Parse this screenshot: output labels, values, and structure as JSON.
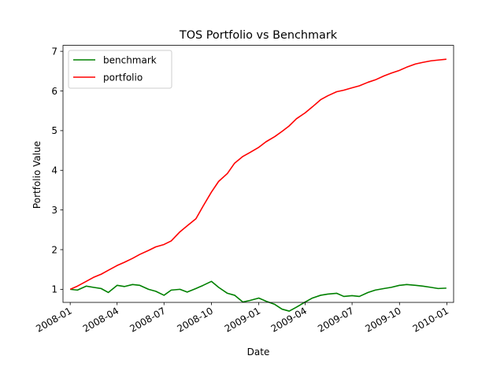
{
  "chart_data": {
    "type": "line",
    "title": "TOS Portfolio vs Benchmark",
    "xlabel": "Date",
    "ylabel": "Portfolio Value",
    "x_range": [
      "2007-12-18",
      "2010-01-14"
    ],
    "ylim": [
      0.67,
      7.15
    ],
    "x_ticks": [
      "2008-01",
      "2008-04",
      "2008-07",
      "2008-10",
      "2009-01",
      "2009-04",
      "2009-07",
      "2009-10",
      "2010-01"
    ],
    "y_ticks": [
      1,
      2,
      3,
      4,
      5,
      6,
      7
    ],
    "grid": false,
    "legend_position": "top-left",
    "series": [
      {
        "name": "benchmark",
        "color": "#008000",
        "x": [
          "2008-01-01",
          "2008-01-15",
          "2008-02-01",
          "2008-02-15",
          "2008-03-01",
          "2008-03-15",
          "2008-04-01",
          "2008-04-15",
          "2008-05-01",
          "2008-05-15",
          "2008-06-01",
          "2008-06-15",
          "2008-07-01",
          "2008-07-15",
          "2008-08-01",
          "2008-08-15",
          "2008-09-01",
          "2008-09-15",
          "2008-10-01",
          "2008-10-15",
          "2008-11-01",
          "2008-11-15",
          "2008-12-01",
          "2008-12-15",
          "2009-01-01",
          "2009-01-15",
          "2009-02-01",
          "2009-02-15",
          "2009-03-01",
          "2009-03-15",
          "2009-04-01",
          "2009-04-15",
          "2009-05-01",
          "2009-05-15",
          "2009-06-01",
          "2009-06-15",
          "2009-07-01",
          "2009-07-15",
          "2009-08-01",
          "2009-08-15",
          "2009-09-01",
          "2009-09-15",
          "2009-10-01",
          "2009-10-15",
          "2009-11-01",
          "2009-11-15",
          "2009-12-01",
          "2009-12-15",
          "2009-12-31"
        ],
        "values": [
          1.0,
          0.98,
          1.08,
          1.05,
          1.02,
          0.92,
          1.1,
          1.07,
          1.12,
          1.1,
          1.0,
          0.95,
          0.85,
          0.98,
          1.0,
          0.93,
          1.02,
          1.1,
          1.2,
          1.05,
          0.9,
          0.85,
          0.68,
          0.72,
          0.78,
          0.7,
          0.62,
          0.5,
          0.45,
          0.55,
          0.68,
          0.78,
          0.85,
          0.88,
          0.9,
          0.82,
          0.84,
          0.82,
          0.92,
          0.98,
          1.02,
          1.05,
          1.1,
          1.12,
          1.1,
          1.08,
          1.05,
          1.02,
          1.03
        ]
      },
      {
        "name": "portfolio",
        "color": "#ff0000",
        "x": [
          "2008-01-01",
          "2008-01-15",
          "2008-02-01",
          "2008-02-15",
          "2008-03-01",
          "2008-03-15",
          "2008-04-01",
          "2008-04-15",
          "2008-05-01",
          "2008-05-15",
          "2008-06-01",
          "2008-06-15",
          "2008-07-01",
          "2008-07-15",
          "2008-08-01",
          "2008-08-15",
          "2008-09-01",
          "2008-09-15",
          "2008-10-01",
          "2008-10-15",
          "2008-11-01",
          "2008-11-15",
          "2008-12-01",
          "2008-12-15",
          "2009-01-01",
          "2009-01-15",
          "2009-02-01",
          "2009-02-15",
          "2009-03-01",
          "2009-03-15",
          "2009-04-01",
          "2009-04-15",
          "2009-05-01",
          "2009-05-15",
          "2009-06-01",
          "2009-06-15",
          "2009-07-01",
          "2009-07-15",
          "2009-08-01",
          "2009-08-15",
          "2009-09-01",
          "2009-09-15",
          "2009-10-01",
          "2009-10-15",
          "2009-11-01",
          "2009-11-15",
          "2009-12-01",
          "2009-12-15",
          "2009-12-31"
        ],
        "values": [
          1.0,
          1.08,
          1.2,
          1.3,
          1.38,
          1.48,
          1.6,
          1.68,
          1.78,
          1.88,
          1.98,
          2.07,
          2.13,
          2.22,
          2.45,
          2.6,
          2.78,
          3.1,
          3.45,
          3.72,
          3.92,
          4.18,
          4.35,
          4.45,
          4.58,
          4.72,
          4.85,
          4.98,
          5.12,
          5.3,
          5.45,
          5.6,
          5.78,
          5.88,
          5.98,
          6.02,
          6.08,
          6.13,
          6.22,
          6.28,
          6.38,
          6.45,
          6.52,
          6.6,
          6.68,
          6.72,
          6.76,
          6.78,
          6.8
        ]
      }
    ]
  }
}
